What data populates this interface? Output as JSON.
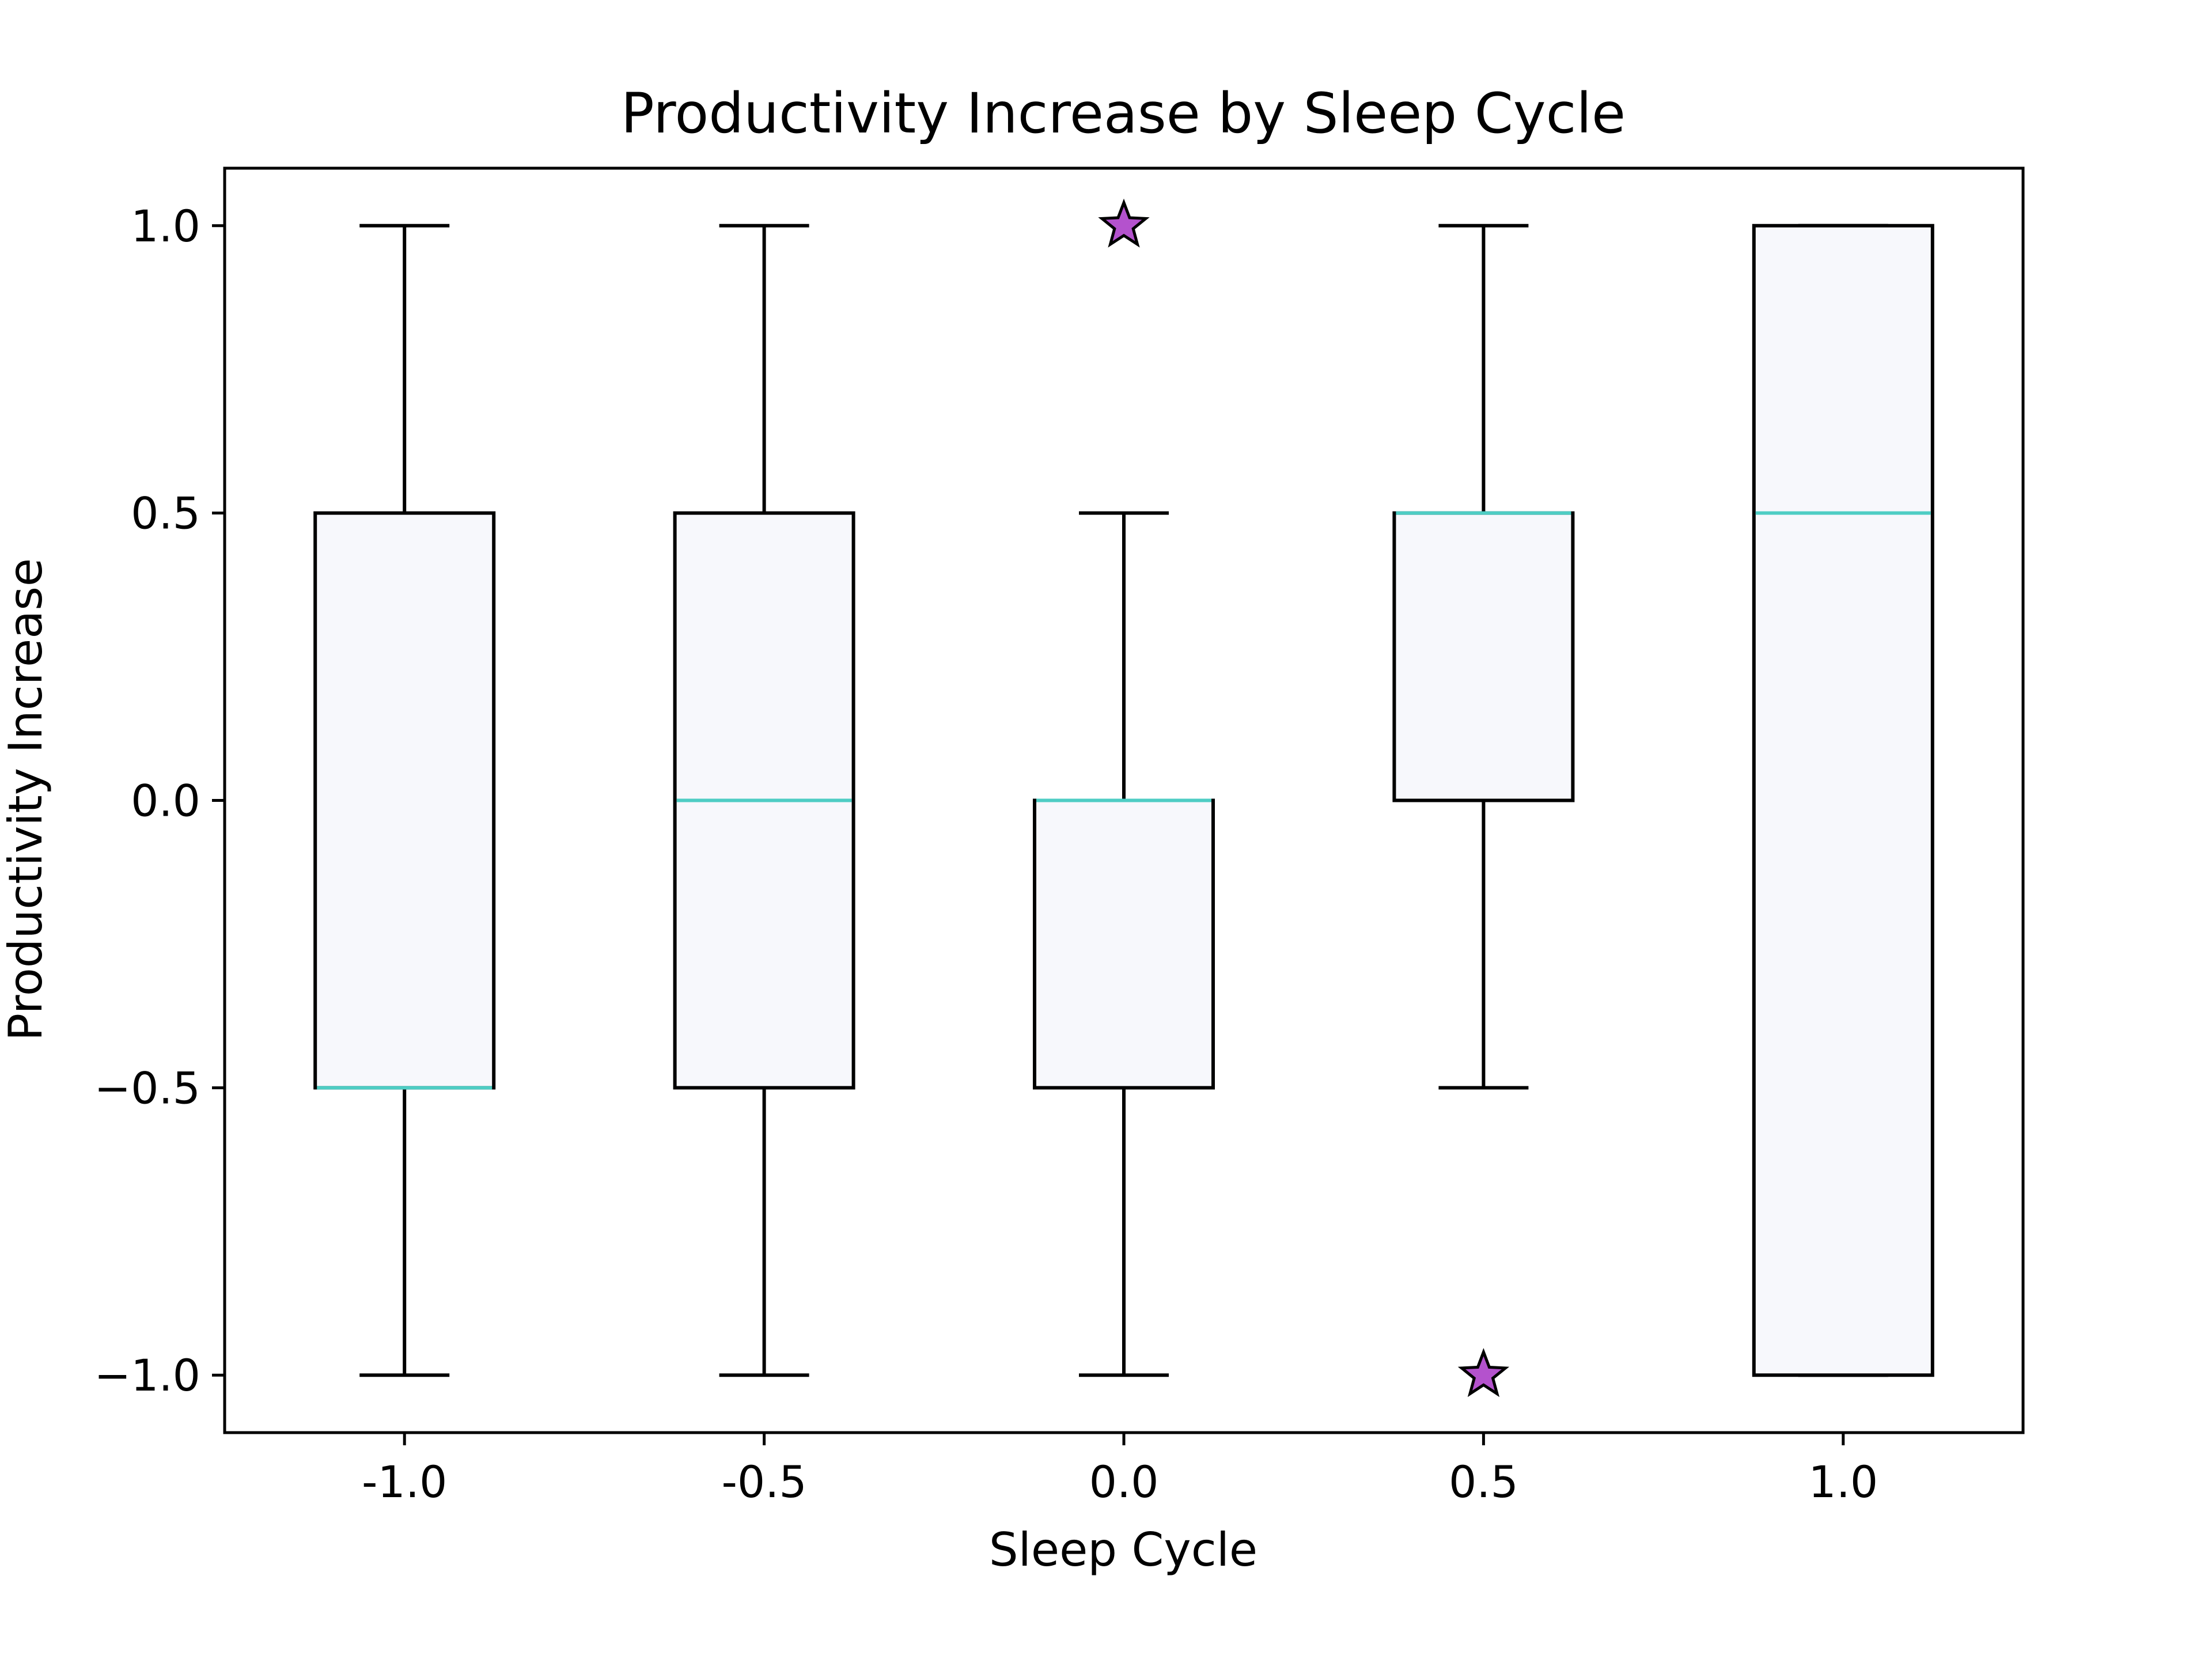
{
  "chart_data": {
    "type": "box",
    "title": "Productivity Increase by Sleep Cycle",
    "xlabel": "Sleep Cycle",
    "ylabel": "Productivity Increase",
    "categories": [
      "-1.0",
      "-0.5",
      "0.0",
      "0.5",
      "1.0"
    ],
    "ylim": [
      -1.1,
      1.1
    ],
    "yticks": [
      1.0,
      0.5,
      0.0,
      -0.5,
      -1.0
    ],
    "ytick_labels": [
      "1.0",
      "0.5",
      "0.0",
      "−0.5",
      "−1.0"
    ],
    "grid": false,
    "boxes": [
      {
        "category": "-1.0",
        "whisker_low": -1.0,
        "q1": -0.5,
        "median": -0.5,
        "q3": 0.5,
        "whisker_high": 1.0,
        "outliers": []
      },
      {
        "category": "-0.5",
        "whisker_low": -1.0,
        "q1": -0.5,
        "median": 0.0,
        "q3": 0.5,
        "whisker_high": 1.0,
        "outliers": []
      },
      {
        "category": "0.0",
        "whisker_low": -1.0,
        "q1": -0.5,
        "median": 0.0,
        "q3": 0.0,
        "whisker_high": 0.5,
        "outliers": [
          1.0
        ]
      },
      {
        "category": "0.5",
        "whisker_low": -0.5,
        "q1": 0.0,
        "median": 0.5,
        "q3": 0.5,
        "whisker_high": 1.0,
        "outliers": [
          -1.0
        ]
      },
      {
        "category": "1.0",
        "whisker_low": -1.0,
        "q1": -1.0,
        "median": 0.5,
        "q3": 1.0,
        "whisker_high": 1.0,
        "outliers": []
      }
    ],
    "colors": {
      "box_fill": "#f7f8fc",
      "box_edge": "#000000",
      "median": "#4ecdc4",
      "outlier_fill": "#b452cd",
      "outlier_edge": "#000000"
    },
    "outlier_marker": "star-icon"
  }
}
